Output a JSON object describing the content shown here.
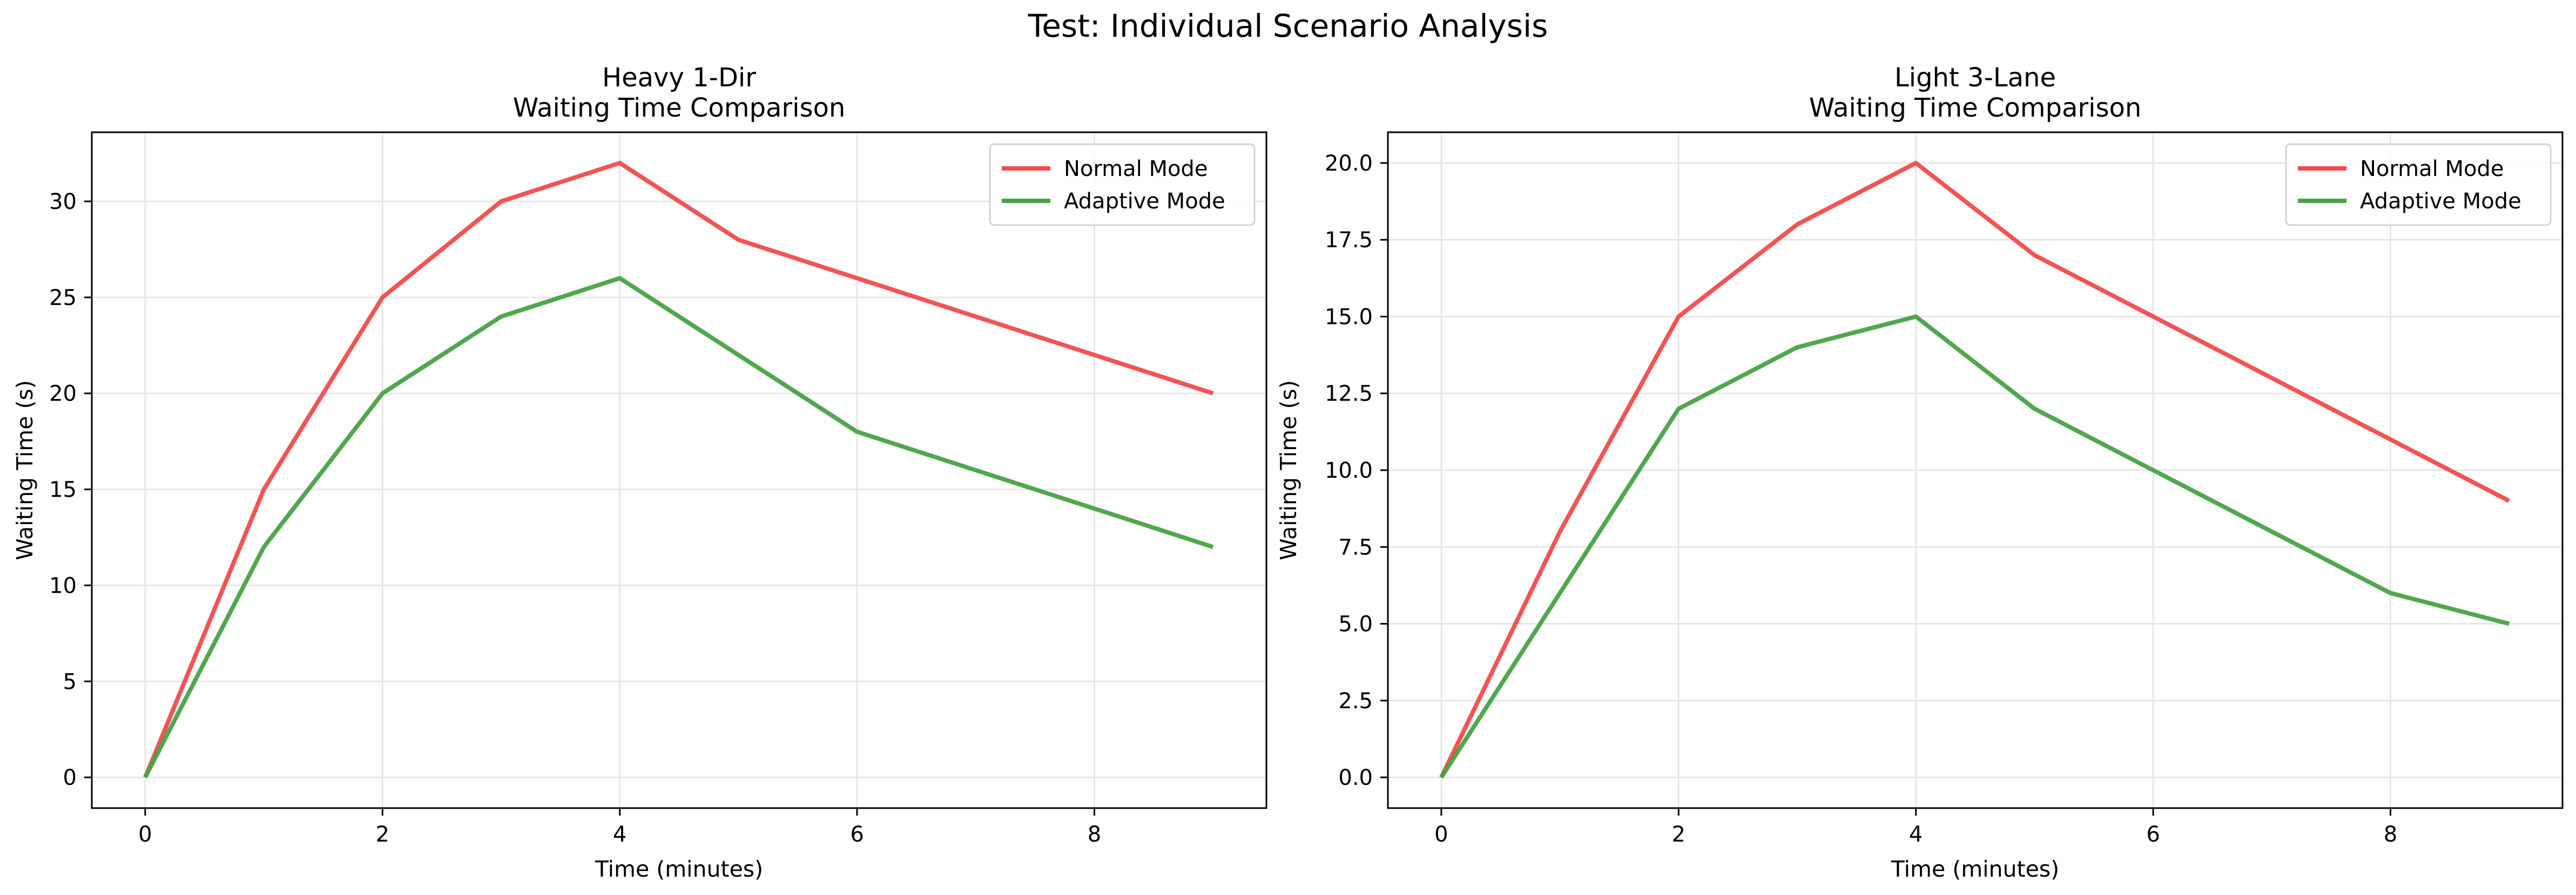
{
  "suptitle": "Test: Individual Scenario Analysis",
  "colors": {
    "normal": "#f14b4b",
    "adaptive": "#48a244",
    "grid": "#e3e3e3",
    "axes": "#000000"
  },
  "chart_data": [
    {
      "type": "line",
      "title": "Heavy 1-Dir\nWaiting Time Comparison",
      "xlabel": "Time (minutes)",
      "ylabel": "Waiting Time (s)",
      "xlim": [
        -0.45,
        9.45
      ],
      "ylim": [
        -1.6,
        33.6
      ],
      "xticks": [
        0,
        2,
        4,
        6,
        8
      ],
      "xtick_labels": [
        "0",
        "2",
        "4",
        "6",
        "8"
      ],
      "yticks": [
        0,
        5,
        10,
        15,
        20,
        25,
        30
      ],
      "ytick_labels": [
        "0",
        "5",
        "10",
        "15",
        "20",
        "25",
        "30"
      ],
      "grid": true,
      "legend_position": "top-right",
      "x": [
        0,
        1,
        2,
        3,
        4,
        5,
        6,
        7,
        8,
        9
      ],
      "series": [
        {
          "name": "Normal Mode",
          "color_key": "normal",
          "values": [
            0,
            15,
            25,
            30,
            32,
            28,
            26,
            24,
            22,
            20
          ]
        },
        {
          "name": "Adaptive Mode",
          "color_key": "adaptive",
          "values": [
            0,
            12,
            20,
            24,
            26,
            22,
            18,
            16,
            14,
            12
          ]
        }
      ]
    },
    {
      "type": "line",
      "title": "Light 3-Lane\nWaiting Time Comparison",
      "xlabel": "Time (minutes)",
      "ylabel": "Waiting Time (s)",
      "xlim": [
        -0.45,
        9.45
      ],
      "ylim": [
        -1.0,
        21.0
      ],
      "xticks": [
        0,
        2,
        4,
        6,
        8
      ],
      "xtick_labels": [
        "0",
        "2",
        "4",
        "6",
        "8"
      ],
      "yticks": [
        0,
        2.5,
        5,
        7.5,
        10,
        12.5,
        15,
        17.5,
        20
      ],
      "ytick_labels": [
        "0.0",
        "2.5",
        "5.0",
        "7.5",
        "10.0",
        "12.5",
        "15.0",
        "17.5",
        "20.0"
      ],
      "grid": true,
      "legend_position": "top-right",
      "x": [
        0,
        1,
        2,
        3,
        4,
        5,
        6,
        7,
        8,
        9
      ],
      "series": [
        {
          "name": "Normal Mode",
          "color_key": "normal",
          "values": [
            0,
            8,
            15,
            18,
            20,
            17,
            15,
            13,
            11,
            9
          ]
        },
        {
          "name": "Adaptive Mode",
          "color_key": "adaptive",
          "values": [
            0,
            6,
            12,
            14,
            15,
            12,
            10,
            8,
            6,
            5
          ]
        }
      ]
    }
  ]
}
